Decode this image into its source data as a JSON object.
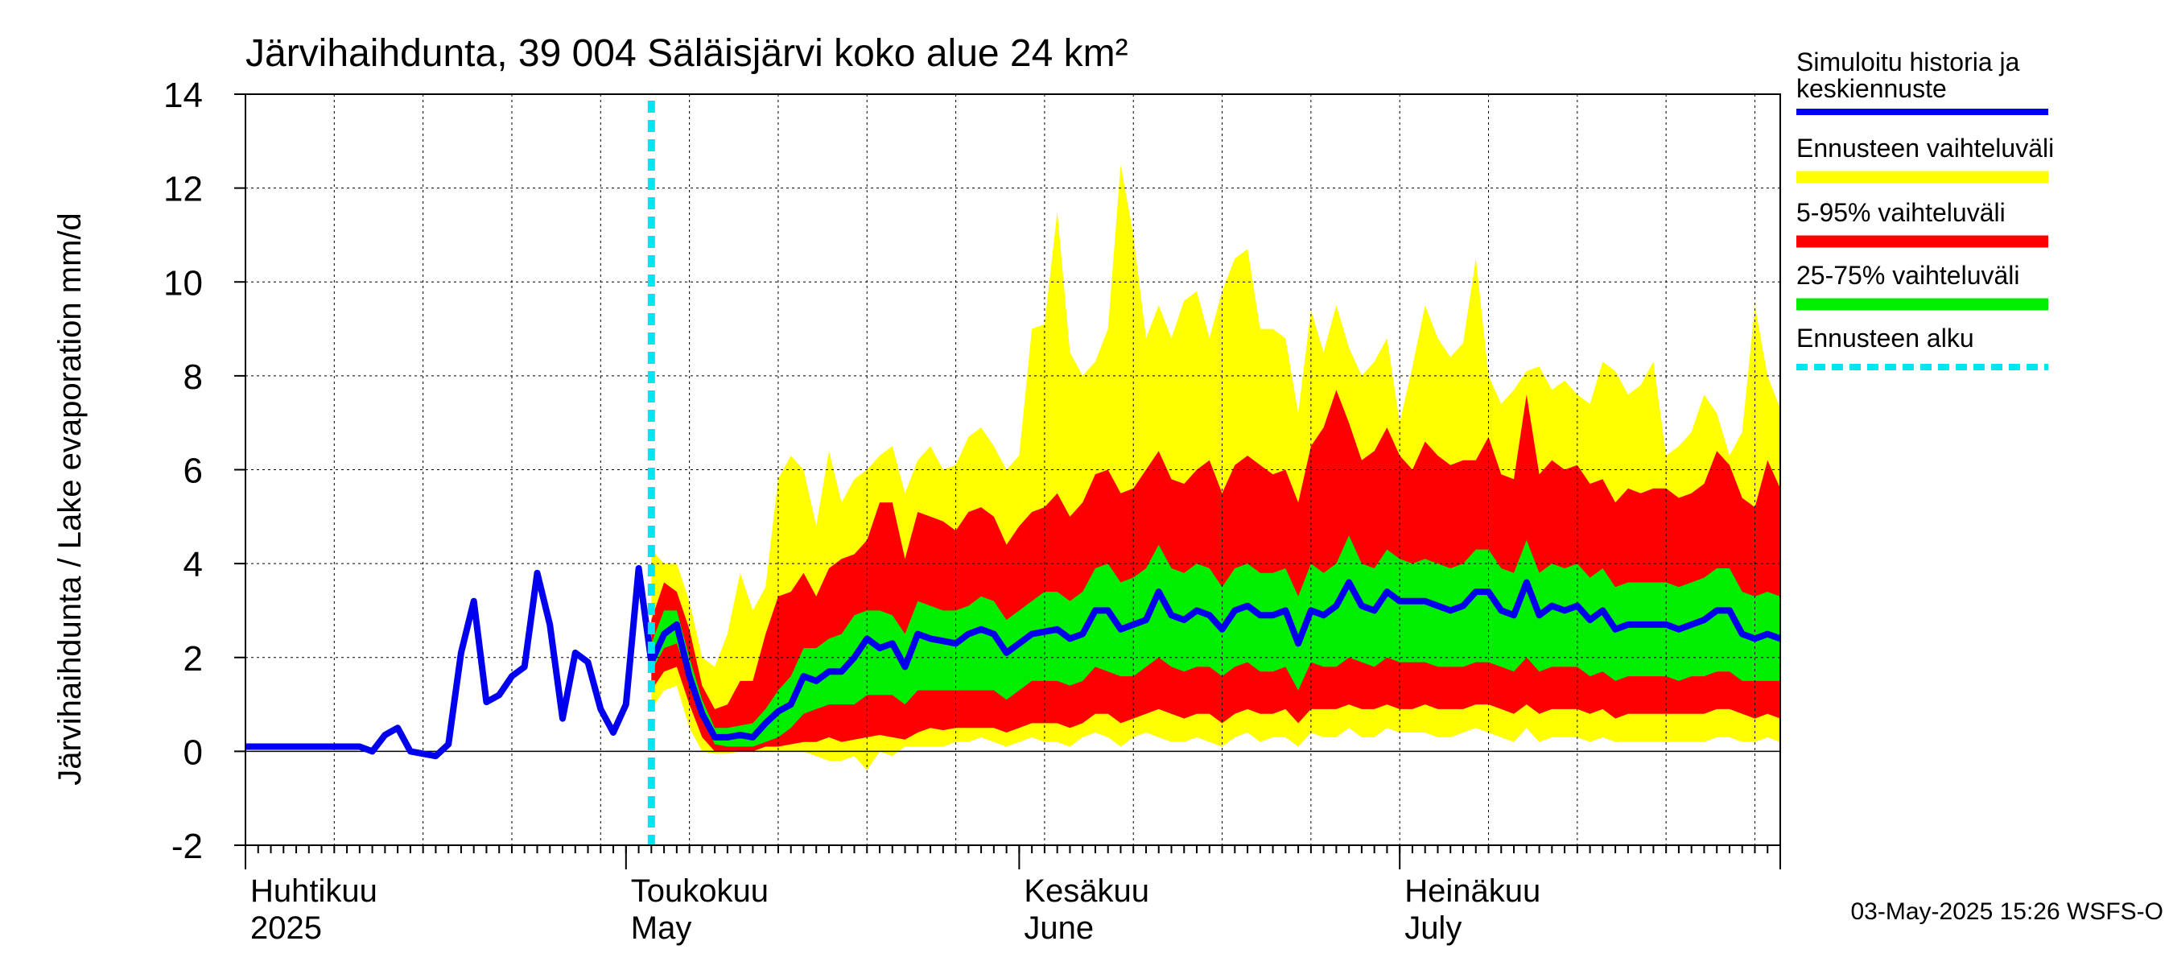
{
  "chart_data": {
    "type": "area",
    "title": "Järvihaihdunta, 39 004 Säläisjärvi koko alue 24 km²",
    "ylabel": "Järvihaihdunta / Lake evaporation   mm/d",
    "ylim": [
      -2,
      14
    ],
    "yticks": [
      -2,
      0,
      2,
      4,
      6,
      8,
      10,
      12,
      14
    ],
    "x_start": "2025-04-01",
    "x_end": "2025-07-31",
    "forecast_start": "2025-05-03",
    "month_labels": [
      {
        "fi": "Huhtikuu",
        "en": "2025",
        "date": "2025-04-01"
      },
      {
        "fi": "Toukokuu",
        "en": "May",
        "date": "2025-05-01"
      },
      {
        "fi": "Kesäkuu",
        "en": "June",
        "date": "2025-06-01"
      },
      {
        "fi": "Heinäkuu",
        "en": "July",
        "date": "2025-07-01"
      }
    ],
    "legend": [
      {
        "label": "Simuloitu historia ja keskiennuste",
        "color": "#0000ee",
        "style": "solid"
      },
      {
        "label": "Ennusteen vaihteluväli",
        "color": "#ffff00",
        "style": "band"
      },
      {
        "label": "5-95% vaihteluväli",
        "color": "#ff0000",
        "style": "band"
      },
      {
        "label": "25-75% vaihteluväli",
        "color": "#00ee00",
        "style": "band"
      },
      {
        "label": "Ennusteen alku",
        "color": "#00e5ee",
        "style": "dashed"
      }
    ],
    "legend_placement": "right",
    "grid": true,
    "footer": "03-May-2025 15:26 WSFS-O",
    "colors": {
      "history": "#0000ee",
      "range_full": "#ffff00",
      "range_5_95": "#ff0000",
      "range_25_75": "#00ee00",
      "forecast_start": "#00e5ee"
    },
    "history": {
      "dates": [
        "2025-04-01",
        "2025-04-02",
        "2025-04-03",
        "2025-04-04",
        "2025-04-05",
        "2025-04-06",
        "2025-04-07",
        "2025-04-08",
        "2025-04-09",
        "2025-04-10",
        "2025-04-11",
        "2025-04-12",
        "2025-04-13",
        "2025-04-14",
        "2025-04-15",
        "2025-04-16",
        "2025-04-17",
        "2025-04-18",
        "2025-04-19",
        "2025-04-20",
        "2025-04-21",
        "2025-04-22",
        "2025-04-23",
        "2025-04-24",
        "2025-04-25",
        "2025-04-26",
        "2025-04-27",
        "2025-04-28",
        "2025-04-29",
        "2025-04-30",
        "2025-05-01",
        "2025-05-02",
        "2025-05-03"
      ],
      "values": [
        0.1,
        0.1,
        0.1,
        0.1,
        0.1,
        0.1,
        0.1,
        0.1,
        0.1,
        0.1,
        0.0,
        0.35,
        0.5,
        0.0,
        -0.05,
        -0.1,
        0.15,
        2.1,
        3.2,
        1.05,
        1.2,
        1.6,
        1.8,
        3.8,
        2.7,
        0.7,
        2.1,
        1.9,
        0.9,
        0.4,
        1.0,
        3.9,
        1.9
      ]
    },
    "forecast": {
      "dates": [
        "2025-05-03",
        "2025-05-04",
        "2025-05-05",
        "2025-05-06",
        "2025-05-07",
        "2025-05-08",
        "2025-05-09",
        "2025-05-10",
        "2025-05-11",
        "2025-05-12",
        "2025-05-13",
        "2025-05-14",
        "2025-05-15",
        "2025-05-16",
        "2025-05-17",
        "2025-05-18",
        "2025-05-19",
        "2025-05-20",
        "2025-05-21",
        "2025-05-22",
        "2025-05-23",
        "2025-05-24",
        "2025-05-25",
        "2025-05-26",
        "2025-05-27",
        "2025-05-28",
        "2025-05-29",
        "2025-05-30",
        "2025-05-31",
        "2025-06-01",
        "2025-06-02",
        "2025-06-03",
        "2025-06-04",
        "2025-06-05",
        "2025-06-06",
        "2025-06-07",
        "2025-06-08",
        "2025-06-09",
        "2025-06-10",
        "2025-06-11",
        "2025-06-12",
        "2025-06-13",
        "2025-06-14",
        "2025-06-15",
        "2025-06-16",
        "2025-06-17",
        "2025-06-18",
        "2025-06-19",
        "2025-06-20",
        "2025-06-21",
        "2025-06-22",
        "2025-06-23",
        "2025-06-24",
        "2025-06-25",
        "2025-06-26",
        "2025-06-27",
        "2025-06-28",
        "2025-06-29",
        "2025-06-30",
        "2025-07-01",
        "2025-07-02",
        "2025-07-03",
        "2025-07-04",
        "2025-07-05",
        "2025-07-06",
        "2025-07-07",
        "2025-07-08",
        "2025-07-09",
        "2025-07-10",
        "2025-07-11",
        "2025-07-12",
        "2025-07-13",
        "2025-07-14",
        "2025-07-15",
        "2025-07-16",
        "2025-07-17",
        "2025-07-18",
        "2025-07-19",
        "2025-07-20",
        "2025-07-21",
        "2025-07-22",
        "2025-07-23",
        "2025-07-24",
        "2025-07-25",
        "2025-07-26",
        "2025-07-27",
        "2025-07-28",
        "2025-07-29",
        "2025-07-30",
        "2025-07-31"
      ],
      "mean": [
        1.9,
        2.5,
        2.7,
        1.6,
        0.8,
        0.3,
        0.3,
        0.35,
        0.3,
        0.6,
        0.85,
        1.0,
        1.6,
        1.5,
        1.7,
        1.7,
        2.0,
        2.4,
        2.2,
        2.3,
        1.8,
        2.5,
        2.4,
        2.35,
        2.3,
        2.5,
        2.6,
        2.5,
        2.1,
        2.3,
        2.5,
        2.55,
        2.6,
        2.4,
        2.5,
        3.0,
        3.0,
        2.6,
        2.7,
        2.8,
        3.4,
        2.9,
        2.8,
        3.0,
        2.9,
        2.6,
        3.0,
        3.1,
        2.9,
        2.9,
        3.0,
        2.3,
        3.0,
        2.9,
        3.1,
        3.6,
        3.1,
        3.0,
        3.4,
        3.2,
        3.2,
        3.2,
        3.1,
        3.0,
        3.1,
        3.4,
        3.4,
        3.0,
        2.9,
        3.6,
        2.9,
        3.1,
        3.0,
        3.1,
        2.8,
        3.0,
        2.6,
        2.7,
        2.7,
        2.7,
        2.7,
        2.6,
        2.7,
        2.8,
        3.0,
        3.0,
        2.5,
        2.4,
        2.5,
        2.4
      ],
      "q25": [
        1.7,
        2.2,
        2.3,
        1.5,
        0.7,
        0.15,
        0.1,
        0.1,
        0.1,
        0.2,
        0.3,
        0.5,
        0.8,
        0.9,
        1.0,
        1.0,
        1.0,
        1.2,
        1.2,
        1.2,
        1.0,
        1.3,
        1.3,
        1.3,
        1.3,
        1.3,
        1.3,
        1.3,
        1.1,
        1.3,
        1.5,
        1.5,
        1.5,
        1.4,
        1.5,
        1.8,
        1.7,
        1.6,
        1.6,
        1.8,
        2.0,
        1.8,
        1.7,
        1.8,
        1.8,
        1.6,
        1.8,
        1.9,
        1.7,
        1.7,
        1.8,
        1.3,
        1.9,
        1.8,
        1.8,
        2.0,
        1.9,
        1.8,
        2.0,
        1.9,
        1.9,
        1.9,
        1.8,
        1.8,
        1.8,
        1.9,
        1.9,
        1.8,
        1.7,
        2.0,
        1.7,
        1.8,
        1.8,
        1.8,
        1.6,
        1.7,
        1.5,
        1.6,
        1.6,
        1.6,
        1.6,
        1.5,
        1.6,
        1.6,
        1.7,
        1.7,
        1.5,
        1.5,
        1.5,
        1.5
      ],
      "q75": [
        2.3,
        3.0,
        3.0,
        2.0,
        1.1,
        0.5,
        0.5,
        0.55,
        0.6,
        0.9,
        1.3,
        1.6,
        2.2,
        2.2,
        2.4,
        2.5,
        2.9,
        3.0,
        3.0,
        2.9,
        2.5,
        3.2,
        3.1,
        3.0,
        3.0,
        3.1,
        3.3,
        3.2,
        2.8,
        3.0,
        3.2,
        3.4,
        3.4,
        3.2,
        3.4,
        3.9,
        4.0,
        3.6,
        3.7,
        3.9,
        4.4,
        3.9,
        3.8,
        4.0,
        3.9,
        3.5,
        3.9,
        4.0,
        3.8,
        3.8,
        3.9,
        3.3,
        4.0,
        3.8,
        4.0,
        4.6,
        4.0,
        3.9,
        4.3,
        4.1,
        4.0,
        4.1,
        4.0,
        3.9,
        4.0,
        4.3,
        4.3,
        3.9,
        3.8,
        4.5,
        3.8,
        4.0,
        3.9,
        4.0,
        3.7,
        3.9,
        3.5,
        3.6,
        3.6,
        3.6,
        3.6,
        3.5,
        3.6,
        3.7,
        3.9,
        3.9,
        3.4,
        3.3,
        3.4,
        3.3
      ],
      "p05": [
        1.3,
        1.7,
        1.8,
        1.0,
        0.3,
        0.0,
        0.0,
        0.0,
        0.0,
        0.1,
        0.1,
        0.15,
        0.2,
        0.2,
        0.3,
        0.2,
        0.25,
        0.3,
        0.35,
        0.3,
        0.25,
        0.4,
        0.5,
        0.45,
        0.5,
        0.5,
        0.5,
        0.5,
        0.4,
        0.5,
        0.6,
        0.6,
        0.6,
        0.5,
        0.6,
        0.8,
        0.8,
        0.6,
        0.7,
        0.8,
        0.9,
        0.8,
        0.7,
        0.8,
        0.8,
        0.6,
        0.8,
        0.9,
        0.8,
        0.8,
        0.9,
        0.6,
        0.9,
        0.9,
        0.9,
        1.0,
        0.9,
        0.9,
        1.0,
        0.9,
        0.9,
        1.0,
        0.9,
        0.9,
        0.9,
        1.0,
        1.0,
        0.9,
        0.8,
        1.0,
        0.8,
        0.9,
        0.9,
        0.9,
        0.8,
        0.9,
        0.7,
        0.8,
        0.8,
        0.8,
        0.8,
        0.8,
        0.8,
        0.8,
        0.9,
        0.9,
        0.8,
        0.7,
        0.8,
        0.7
      ],
      "p95": [
        2.8,
        3.6,
        3.4,
        2.6,
        1.4,
        0.9,
        1.0,
        1.5,
        1.5,
        2.5,
        3.3,
        3.4,
        3.8,
        3.3,
        3.9,
        4.1,
        4.2,
        4.5,
        5.3,
        5.3,
        4.1,
        5.1,
        5.0,
        4.9,
        4.7,
        5.1,
        5.2,
        5.0,
        4.4,
        4.8,
        5.1,
        5.2,
        5.5,
        5.0,
        5.3,
        5.9,
        6.0,
        5.5,
        5.6,
        6.0,
        6.4,
        5.8,
        5.7,
        6.0,
        6.2,
        5.5,
        6.1,
        6.3,
        6.1,
        5.9,
        6.0,
        5.3,
        6.5,
        6.9,
        7.7,
        7.0,
        6.2,
        6.4,
        6.9,
        6.3,
        6.0,
        6.6,
        6.3,
        6.1,
        6.2,
        6.2,
        6.7,
        5.9,
        5.8,
        7.6,
        5.9,
        6.2,
        6.0,
        6.1,
        5.7,
        5.8,
        5.3,
        5.6,
        5.5,
        5.6,
        5.6,
        5.4,
        5.5,
        5.7,
        6.4,
        6.1,
        5.4,
        5.2,
        6.2,
        5.6
      ],
      "min": [
        0.9,
        1.3,
        1.4,
        0.5,
        0.0,
        -0.05,
        -0.05,
        0.0,
        0.0,
        0.0,
        0.0,
        0.0,
        0.0,
        -0.1,
        -0.2,
        -0.2,
        -0.1,
        -0.4,
        0.0,
        -0.1,
        0.1,
        0.1,
        0.1,
        0.1,
        0.2,
        0.2,
        0.3,
        0.2,
        0.1,
        0.2,
        0.3,
        0.2,
        0.2,
        0.1,
        0.3,
        0.4,
        0.3,
        0.1,
        0.3,
        0.4,
        0.3,
        0.2,
        0.2,
        0.3,
        0.2,
        0.1,
        0.3,
        0.4,
        0.2,
        0.3,
        0.3,
        0.1,
        0.4,
        0.3,
        0.3,
        0.5,
        0.3,
        0.3,
        0.5,
        0.4,
        0.4,
        0.4,
        0.3,
        0.3,
        0.4,
        0.5,
        0.4,
        0.3,
        0.2,
        0.5,
        0.2,
        0.3,
        0.3,
        0.3,
        0.2,
        0.3,
        0.2,
        0.2,
        0.2,
        0.2,
        0.2,
        0.2,
        0.2,
        0.2,
        0.3,
        0.3,
        0.2,
        0.2,
        0.3,
        0.2
      ],
      "max": [
        4.3,
        4.0,
        4.0,
        3.2,
        2.0,
        1.8,
        2.5,
        3.8,
        3.0,
        3.5,
        5.8,
        6.3,
        6.0,
        4.8,
        6.4,
        5.3,
        5.8,
        6.0,
        6.3,
        6.5,
        5.5,
        6.2,
        6.5,
        6.0,
        6.1,
        6.7,
        6.9,
        6.5,
        6.0,
        6.3,
        9.0,
        9.1,
        11.5,
        8.5,
        8.0,
        8.3,
        9.0,
        12.5,
        11.0,
        8.8,
        9.5,
        8.8,
        9.6,
        9.8,
        8.8,
        9.8,
        10.5,
        10.7,
        9.0,
        9.0,
        8.8,
        7.2,
        9.4,
        8.5,
        9.5,
        8.6,
        8.0,
        8.3,
        8.8,
        7.0,
        8.2,
        9.5,
        8.8,
        8.4,
        8.7,
        10.5,
        8.0,
        7.4,
        7.7,
        8.1,
        8.2,
        7.7,
        7.9,
        7.6,
        7.4,
        8.3,
        8.1,
        7.6,
        7.8,
        8.3,
        6.3,
        6.5,
        6.8,
        7.6,
        7.2,
        6.3,
        6.8,
        9.5,
        8.0,
        7.3
      ]
    }
  }
}
